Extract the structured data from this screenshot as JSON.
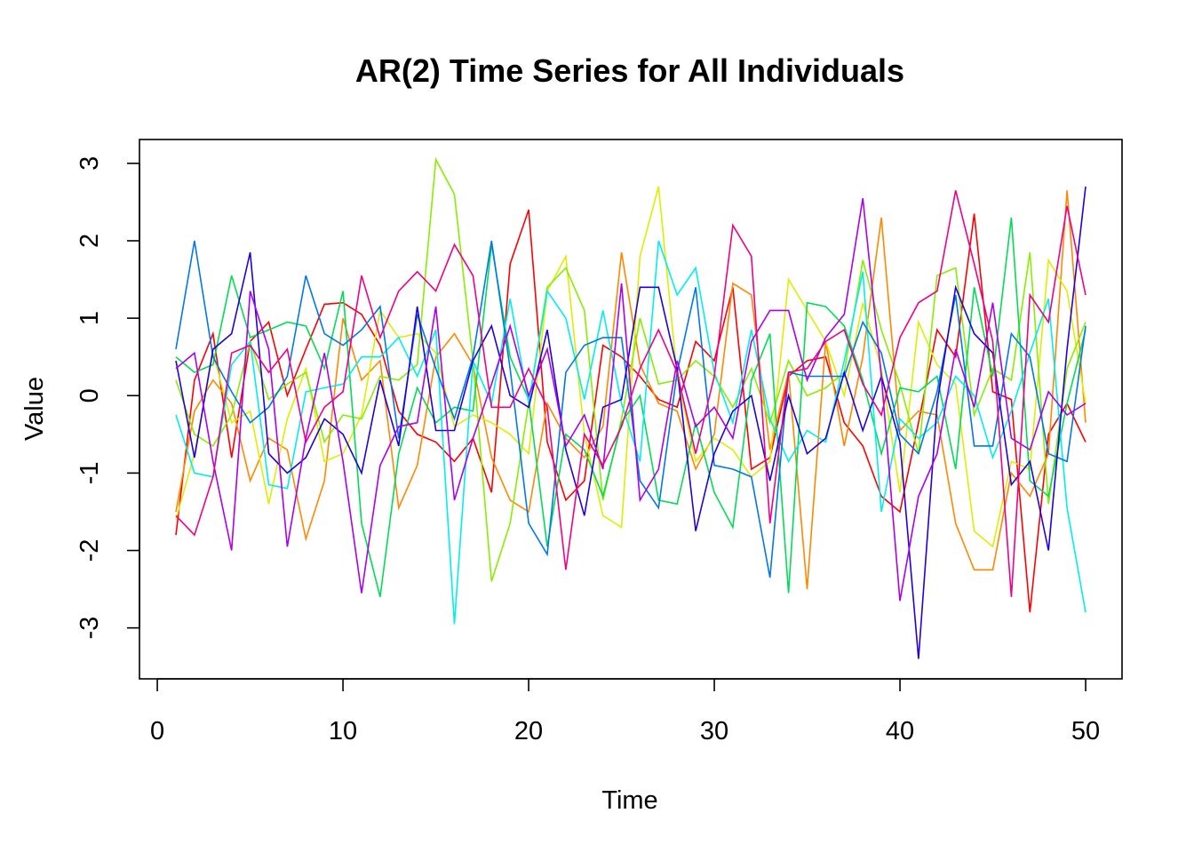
{
  "chart_data": {
    "type": "line",
    "title": "AR(2) Time Series for All Individuals",
    "xlabel": "Time",
    "ylabel": "Value",
    "xlim": [
      1,
      50
    ],
    "ylim": [
      -3.4,
      3.05
    ],
    "x_ticks": [
      0,
      10,
      20,
      30,
      40,
      50
    ],
    "y_ticks": [
      -3,
      -2,
      -1,
      0,
      1,
      2,
      3
    ],
    "grid": false,
    "legend": "none",
    "x": [
      1,
      2,
      3,
      4,
      5,
      6,
      7,
      8,
      9,
      10,
      11,
      12,
      13,
      14,
      15,
      16,
      17,
      18,
      19,
      20,
      21,
      22,
      23,
      24,
      25,
      26,
      27,
      28,
      29,
      30,
      31,
      32,
      33,
      34,
      35,
      36,
      37,
      38,
      39,
      40,
      41,
      42,
      43,
      44,
      45,
      46,
      47,
      48,
      49,
      50
    ],
    "series": [
      {
        "color": "#FF0000",
        "values": [
          -1.8,
          0.2,
          0.8,
          -0.8,
          0.7,
          0.95,
          0.0,
          0.6,
          1.18,
          1.2,
          1.05,
          0.65,
          -0.2,
          -0.5,
          -0.6,
          -0.85,
          -0.55,
          -1.25,
          1.7,
          2.4,
          -0.6,
          -1.35,
          -1.1,
          0.65,
          0.5,
          0.25,
          -0.05,
          -0.15,
          0.7,
          0.45,
          1.4,
          -0.95,
          -0.8,
          0.25,
          0.45,
          0.5,
          -0.35,
          -0.65,
          -1.3,
          -1.5,
          -0.35,
          0.85,
          0.5,
          2.35,
          0.05,
          -0.05,
          -2.8,
          -0.5,
          -0.1,
          -0.6
        ]
      },
      {
        "color": "#FF8800",
        "values": [
          -1.5,
          -0.2,
          0.2,
          -0.1,
          -1.1,
          -0.55,
          -0.7,
          -1.85,
          -1.1,
          1.0,
          0.2,
          0.45,
          -1.45,
          -0.9,
          0.5,
          0.8,
          0.4,
          -0.8,
          -1.35,
          -1.5,
          -0.1,
          -0.55,
          -0.8,
          -0.4,
          1.85,
          0.4,
          -0.1,
          -0.2,
          -0.95,
          -0.5,
          1.45,
          1.3,
          -0.7,
          0.3,
          -2.5,
          0.7,
          -0.65,
          0.5,
          2.3,
          -0.45,
          -0.2,
          -0.25,
          -1.65,
          -2.25,
          -2.25,
          -1.0,
          -1.3,
          -0.75,
          2.65,
          -0.35
        ]
      },
      {
        "color": "#DDEE00",
        "values": [
          -1.6,
          -0.75,
          0.55,
          -0.35,
          -0.2,
          -1.4,
          -0.3,
          0.35,
          -0.85,
          -0.75,
          -0.25,
          1.1,
          0.75,
          0.8,
          0.55,
          -0.4,
          -0.25,
          -0.35,
          -0.5,
          -0.75,
          1.35,
          1.8,
          -0.5,
          -1.55,
          -1.7,
          1.8,
          2.7,
          0.25,
          -0.85,
          -0.55,
          -0.7,
          -1.05,
          -0.85,
          1.5,
          1.1,
          0.7,
          0.0,
          1.2,
          0.35,
          -1.25,
          0.95,
          0.4,
          0.15,
          -1.75,
          -1.95,
          -0.85,
          -0.95,
          1.75,
          1.35,
          -0.1
        ]
      },
      {
        "color": "#88EE00",
        "values": [
          0.2,
          -0.5,
          -0.65,
          -0.25,
          0.7,
          -0.05,
          0.15,
          0.3,
          -0.6,
          -0.25,
          -0.3,
          0.25,
          0.2,
          0.4,
          3.05,
          2.6,
          0.45,
          -2.4,
          -1.65,
          -0.1,
          1.4,
          1.65,
          1.1,
          -1.35,
          -0.3,
          1.0,
          0.15,
          0.2,
          0.45,
          0.25,
          -0.15,
          0.35,
          -0.35,
          0.45,
          0.0,
          0.1,
          0.3,
          1.75,
          0.85,
          0.15,
          -0.75,
          1.55,
          1.65,
          -0.25,
          0.35,
          0.2,
          1.85,
          -1.4,
          0.35,
          0.95
        ]
      },
      {
        "color": "#00DD55",
        "values": [
          0.5,
          0.3,
          0.4,
          1.55,
          0.75,
          0.85,
          0.95,
          0.9,
          0.35,
          1.35,
          -1.65,
          -2.6,
          -0.75,
          0.1,
          -0.35,
          -0.15,
          -0.2,
          1.95,
          0.5,
          -0.05,
          -1.95,
          -0.5,
          -0.7,
          -1.3,
          -0.35,
          0.0,
          -1.35,
          -1.4,
          -0.35,
          -1.25,
          -1.7,
          0.2,
          0.8,
          -2.55,
          1.2,
          1.15,
          0.9,
          0.2,
          -0.75,
          0.1,
          0.05,
          0.25,
          -0.95,
          1.4,
          0.25,
          2.3,
          -1.1,
          -1.3,
          -0.1,
          0.85
        ]
      },
      {
        "color": "#00EEEE",
        "values": [
          -0.25,
          -1.0,
          -1.05,
          0.4,
          0.7,
          -1.15,
          -1.2,
          0.05,
          0.1,
          0.15,
          0.5,
          0.5,
          0.75,
          0.25,
          0.85,
          -2.95,
          0.45,
          -0.1,
          1.25,
          -0.1,
          1.35,
          1.0,
          -0.05,
          1.1,
          -0.1,
          -0.85,
          2.0,
          1.3,
          1.65,
          0.3,
          -0.35,
          0.85,
          -0.3,
          -0.85,
          -0.45,
          -0.6,
          0.45,
          1.6,
          -1.5,
          -0.3,
          -0.55,
          -0.35,
          0.25,
          0.0,
          -0.8,
          -0.2,
          0.55,
          1.25,
          -1.45,
          -2.8
        ]
      },
      {
        "color": "#0077EE",
        "values": [
          0.6,
          2.0,
          0.5,
          0.05,
          -0.35,
          -0.15,
          0.25,
          1.55,
          0.8,
          0.65,
          0.85,
          1.15,
          -0.55,
          1.05,
          0.35,
          -0.3,
          0.5,
          2.0,
          0.35,
          -1.65,
          -2.05,
          0.3,
          0.65,
          0.75,
          0.75,
          -1.1,
          -1.45,
          0.3,
          1.4,
          -0.9,
          -0.95,
          -1.05,
          -2.35,
          0.3,
          0.25,
          0.25,
          0.25,
          0.95,
          0.55,
          -0.5,
          -0.75,
          0.05,
          1.3,
          -0.65,
          -0.65,
          0.8,
          0.5,
          -0.75,
          -0.85,
          0.9
        ]
      },
      {
        "color": "#2200DD",
        "values": [
          0.45,
          -0.8,
          0.6,
          0.8,
          1.85,
          -0.75,
          -1.0,
          -0.8,
          -0.3,
          -0.5,
          -1.0,
          0.2,
          -0.65,
          1.15,
          -0.45,
          -0.45,
          0.45,
          0.9,
          0.0,
          -0.15,
          0.85,
          -0.7,
          -1.55,
          -0.15,
          -0.05,
          1.4,
          1.4,
          0.35,
          -1.75,
          -0.75,
          -0.2,
          0.0,
          -1.1,
          0.0,
          -0.75,
          -0.55,
          0.3,
          -0.45,
          0.25,
          -0.6,
          -3.4,
          -0.1,
          1.4,
          0.8,
          0.55,
          -1.15,
          -0.85,
          -2.0,
          0.6,
          2.7
        ]
      },
      {
        "color": "#AA00EE",
        "values": [
          0.35,
          0.55,
          -0.85,
          -2.0,
          1.35,
          0.6,
          -1.95,
          -0.55,
          0.55,
          -0.85,
          -2.55,
          -0.9,
          -0.4,
          -0.35,
          1.15,
          -1.35,
          -0.55,
          0.15,
          0.9,
          0.0,
          0.6,
          -0.65,
          -0.25,
          -0.95,
          1.45,
          -1.35,
          -0.95,
          0.45,
          -0.4,
          -0.15,
          -0.55,
          0.7,
          1.1,
          1.1,
          0.2,
          0.75,
          1.05,
          2.55,
          0.25,
          -2.65,
          -1.3,
          -0.75,
          0.6,
          -0.15,
          1.2,
          -0.55,
          -0.7,
          0.05,
          -0.25,
          -0.1
        ]
      },
      {
        "color": "#EE0088",
        "values": [
          -1.55,
          -1.8,
          -1.05,
          0.55,
          0.65,
          0.3,
          0.6,
          -0.6,
          -0.15,
          0.05,
          1.55,
          0.75,
          1.35,
          1.6,
          1.35,
          1.95,
          1.55,
          -0.15,
          -0.15,
          0.35,
          -0.15,
          -2.25,
          -0.5,
          -0.9,
          -0.4,
          0.35,
          0.85,
          0.3,
          -0.75,
          0.25,
          2.2,
          1.8,
          -1.65,
          0.3,
          0.35,
          0.7,
          0.85,
          0.15,
          -0.25,
          0.75,
          1.2,
          1.35,
          2.65,
          1.7,
          0.7,
          -2.6,
          1.3,
          0.95,
          2.45,
          1.3
        ]
      }
    ]
  }
}
